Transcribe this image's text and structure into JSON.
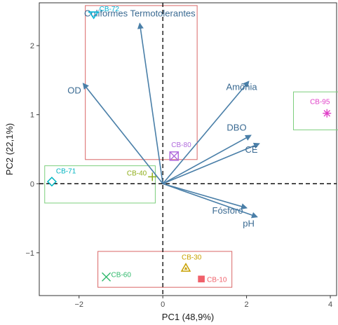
{
  "chart_data": {
    "type": "scatter",
    "subtype": "pca-biplot",
    "title": "",
    "xlabel": "PC1 (48,9%)",
    "ylabel": "PC2 (22,1%)",
    "xlim": [
      -2.95,
      4.15
    ],
    "ylim": [
      -1.62,
      2.62
    ],
    "x_ticks": [
      -2,
      0,
      2,
      4
    ],
    "y_ticks": [
      -1,
      0,
      1,
      2
    ],
    "grid": false,
    "reference_lines": [
      {
        "axis": "x",
        "value": 0,
        "style": "dashed"
      },
      {
        "axis": "y",
        "value": 0,
        "style": "dashed"
      }
    ],
    "loadings": [
      {
        "name": "Coliformes Termotolerantes",
        "x": -0.55,
        "y": 2.32
      },
      {
        "name": "OD",
        "x": -1.9,
        "y": 1.45
      },
      {
        "name": "Amônia",
        "x": 2.05,
        "y": 1.48
      },
      {
        "name": "DBO",
        "x": 2.1,
        "y": 0.7
      },
      {
        "name": "CE",
        "x": 2.3,
        "y": 0.58
      },
      {
        "name": "Fósforo",
        "x": 2.0,
        "y": -0.35
      },
      {
        "name": "pH",
        "x": 2.25,
        "y": -0.48
      }
    ],
    "loading_color": "#4a7fa8",
    "points": [
      {
        "name": "CB-72",
        "x": -1.65,
        "y": 2.45,
        "shape": "triangle-down",
        "color": "#00b4d8"
      },
      {
        "name": "CB-95",
        "x": 3.92,
        "y": 1.02,
        "shape": "asterisk",
        "color": "#e040c8"
      },
      {
        "name": "CB-80",
        "x": 0.27,
        "y": 0.4,
        "shape": "square-x",
        "color": "#b06adc"
      },
      {
        "name": "CB-71",
        "x": -2.65,
        "y": 0.03,
        "shape": "diamond",
        "color": "#00b4c0"
      },
      {
        "name": "CB-40",
        "x": -0.25,
        "y": 0.1,
        "shape": "plus",
        "color": "#8fae1b"
      },
      {
        "name": "CB-30",
        "x": 0.55,
        "y": -1.22,
        "shape": "triangle",
        "color": "#c8a000"
      },
      {
        "name": "CB-10",
        "x": 0.92,
        "y": -1.38,
        "shape": "square",
        "color": "#f0606a"
      },
      {
        "name": "CB-60",
        "x": -1.35,
        "y": -1.35,
        "shape": "x",
        "color": "#2db86a"
      }
    ],
    "groups": [
      {
        "name": "group-top",
        "x0": -1.85,
        "x1": 0.82,
        "y0": 0.35,
        "y1": 2.58,
        "color": "#d96666"
      },
      {
        "name": "group-right",
        "x0": 3.12,
        "x1": 4.25,
        "y0": 0.78,
        "y1": 1.33,
        "color": "#7ccf7c"
      },
      {
        "name": "group-left",
        "x0": -2.82,
        "x1": -0.18,
        "y0": -0.28,
        "y1": 0.26,
        "color": "#7ccf7c"
      },
      {
        "name": "group-bottom",
        "x0": -1.55,
        "x1": 1.65,
        "y0": -1.5,
        "y1": -0.98,
        "color": "#d96666"
      }
    ]
  }
}
